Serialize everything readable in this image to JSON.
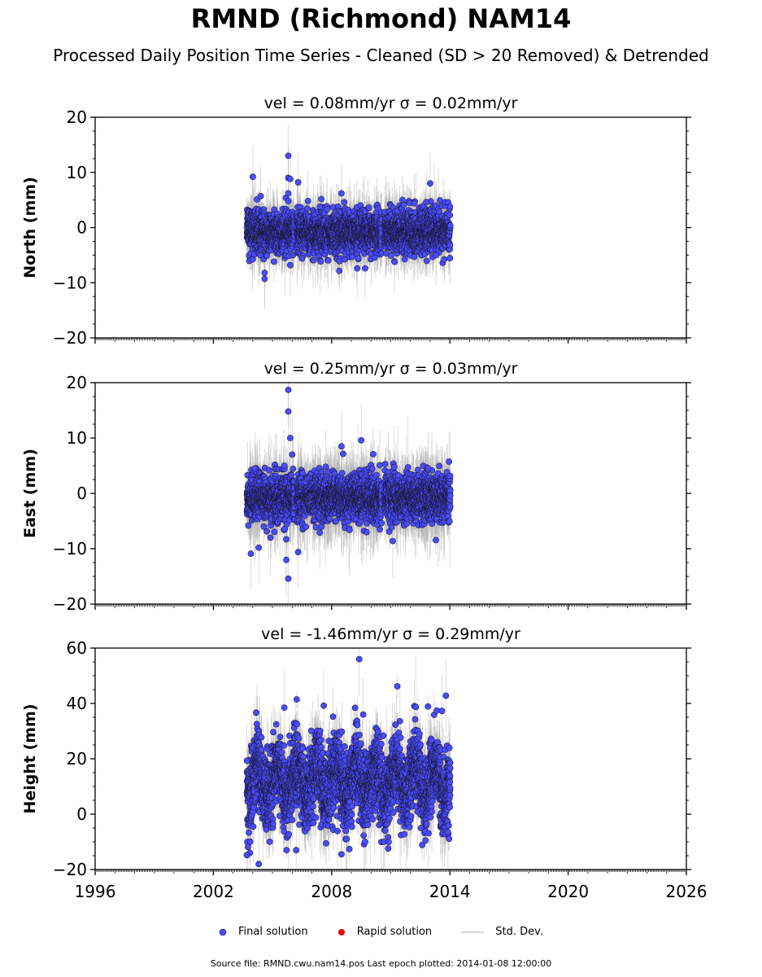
{
  "title": "RMND (Richmond) NAM14",
  "subtitle": "Processed Daily Position Time Series - Cleaned (SD > 20 Removed) & Detrended",
  "footer": "Source file: RMND.cwu.nam14.pos  Last epoch plotted: 2014-01-08 12:00:00",
  "legend": {
    "final": "Final solution",
    "rapid": "Rapid solution",
    "std": "Std. Dev."
  },
  "colors": {
    "final": "#4b4bff",
    "rapid": "#e00000",
    "std": "#b0b0b0",
    "edge": "#1a1a3a"
  },
  "chart_data": [
    {
      "type": "scatter",
      "panel": "north",
      "title": "vel = 0.08mm/yr   σ = 0.02mm/yr",
      "ylabel": "North (mm)",
      "xlim": [
        1996,
        2026
      ],
      "ylim": [
        -20,
        20
      ],
      "yticks": [
        -20,
        -10,
        0,
        10,
        20
      ],
      "xticks": [
        1996,
        2002,
        2008,
        2014,
        2020,
        2026
      ],
      "time_span": [
        2003.7,
        2014.02
      ],
      "scatter_sd": 1.9,
      "err_sd": 2.5,
      "outliers": [
        [
          2004.0,
          9.2
        ],
        [
          2004.4,
          5.7
        ],
        [
          2004.6,
          -8.2
        ],
        [
          2004.6,
          -9.3
        ],
        [
          2005.8,
          13.0
        ],
        [
          2005.8,
          9.0
        ],
        [
          2005.9,
          8.8
        ],
        [
          2005.8,
          6.2
        ],
        [
          2005.8,
          4.8
        ],
        [
          2005.9,
          -6.8
        ],
        [
          2006.3,
          8.2
        ],
        [
          2006.5,
          -5.6
        ],
        [
          2006.8,
          4.8
        ],
        [
          2007.4,
          3.8
        ],
        [
          2008.5,
          6.2
        ],
        [
          2008.4,
          -6.1
        ],
        [
          2009.3,
          -7.4
        ],
        [
          2009.7,
          -7.4
        ],
        [
          2012.2,
          4.4
        ],
        [
          2012.8,
          4.6
        ],
        [
          2013.0,
          8.0
        ],
        [
          2013.3,
          -5.0
        ]
      ]
    },
    {
      "type": "scatter",
      "panel": "east",
      "title": "vel = 0.25mm/yr   σ = 0.03mm/yr",
      "ylabel": "East (mm)",
      "xlim": [
        1996,
        2026
      ],
      "ylim": [
        -20,
        20
      ],
      "yticks": [
        -20,
        -10,
        0,
        10,
        20
      ],
      "xticks": [
        1996,
        2002,
        2008,
        2014,
        2020,
        2026
      ],
      "time_span": [
        2003.7,
        2014.02
      ],
      "scatter_sd": 2.1,
      "err_sd": 3.0,
      "outliers": [
        [
          2003.9,
          -10.9
        ],
        [
          2004.1,
          4.5
        ],
        [
          2004.3,
          -9.8
        ],
        [
          2004.9,
          -8.0
        ],
        [
          2005.6,
          5.0
        ],
        [
          2005.7,
          -8.3
        ],
        [
          2005.7,
          -12.0
        ],
        [
          2005.8,
          -15.4
        ],
        [
          2005.8,
          18.7
        ],
        [
          2005.8,
          14.8
        ],
        [
          2005.9,
          10.0
        ],
        [
          2006.0,
          7.0
        ],
        [
          2006.3,
          -10.6
        ],
        [
          2007.4,
          -7.1
        ],
        [
          2007.7,
          4.8
        ],
        [
          2008.5,
          8.5
        ],
        [
          2009.5,
          9.6
        ],
        [
          2011.1,
          -8.6
        ],
        [
          2012.9,
          4.5
        ]
      ]
    },
    {
      "type": "scatter",
      "panel": "height",
      "title": "vel = -1.46mm/yr   σ = 0.29mm/yr",
      "ylabel": "Height (mm)",
      "xlim": [
        1996,
        2026
      ],
      "ylim": [
        -20,
        60
      ],
      "yticks": [
        -20,
        0,
        20,
        40,
        60
      ],
      "xticks": [
        1996,
        2002,
        2008,
        2014,
        2020,
        2026
      ],
      "time_span": [
        2003.7,
        2014.02
      ],
      "scatter_sd": 7.0,
      "err_sd": 6.0,
      "outliers": [
        [
          2003.7,
          19.3
        ],
        [
          2003.7,
          -14.8
        ],
        [
          2004.3,
          -18.0
        ],
        [
          2005.6,
          38.5
        ],
        [
          2006.2,
          -13.0
        ],
        [
          2007.6,
          39.2
        ],
        [
          2008.5,
          -14.5
        ],
        [
          2008.3,
          -6.1
        ],
        [
          2009.4,
          56.0
        ],
        [
          2009.6,
          36.0
        ],
        [
          2009.7,
          -10.0
        ],
        [
          2013.6,
          37.3
        ],
        [
          2013.8,
          42.8
        ],
        [
          2013.9,
          -6.5
        ]
      ]
    }
  ]
}
